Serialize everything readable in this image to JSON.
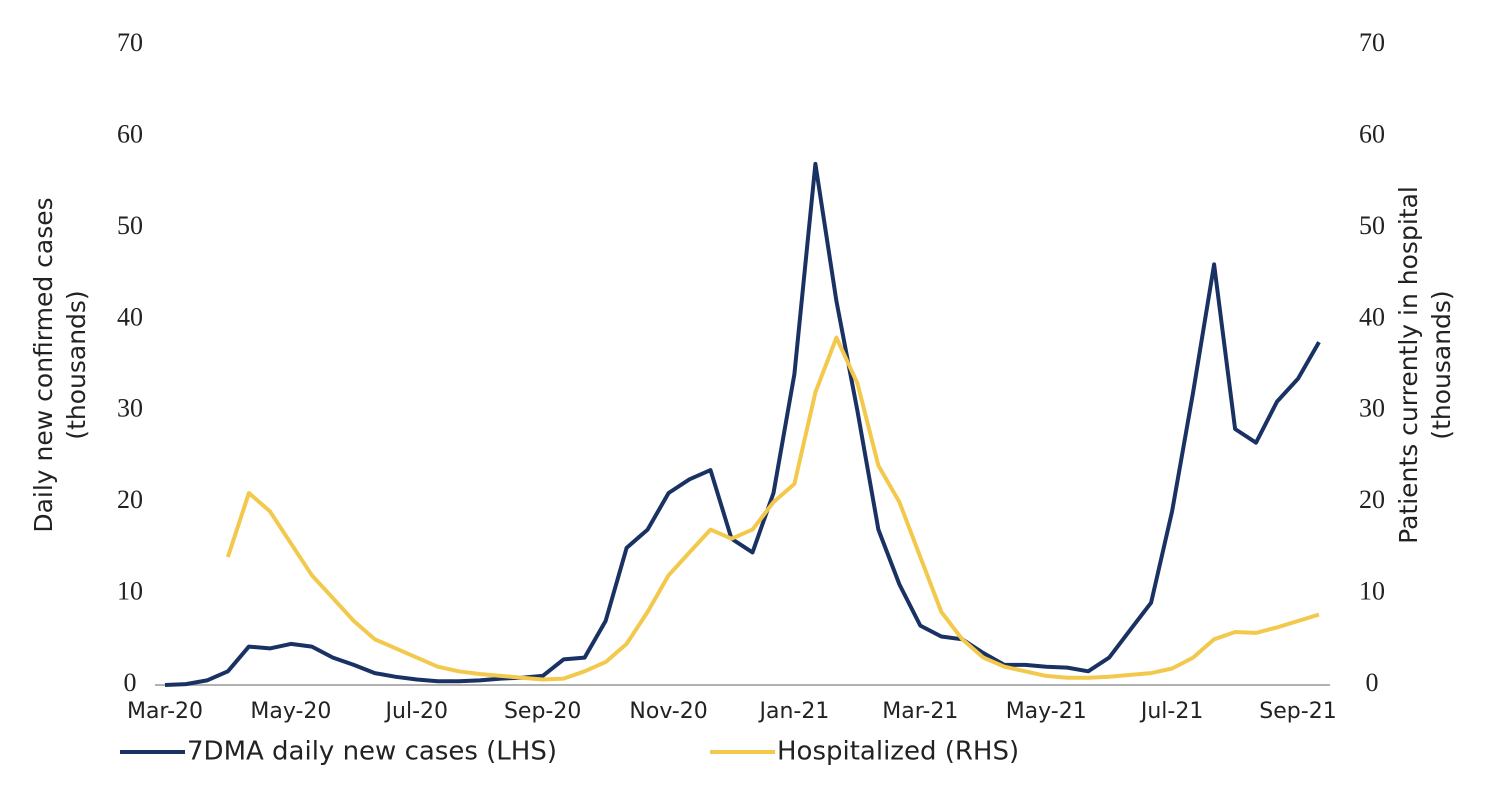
{
  "chart_data": {
    "type": "line",
    "ylabel": [
      "Daily new confirmed cases",
      "(thousands)"
    ],
    "y2label": [
      "Patients currently in hospital",
      "(thousands)"
    ],
    "categories": [
      "Mar-20",
      null,
      null,
      null,
      null,
      null,
      "May-20",
      null,
      null,
      null,
      null,
      null,
      "Jul-20",
      null,
      null,
      null,
      null,
      null,
      "Sep-20",
      null,
      null,
      null,
      null,
      null,
      "Nov-20",
      null,
      null,
      null,
      null,
      null,
      "Jan-21",
      null,
      null,
      null,
      null,
      null,
      "Mar-21",
      null,
      null,
      null,
      null,
      null,
      "May-21",
      null,
      null,
      null,
      null,
      null,
      "Jul-21",
      null,
      null,
      null,
      null,
      null,
      "Sep-21",
      null
    ],
    "series": [
      {
        "name": "7DMA daily new cases (LHS)",
        "color": "#1a3263",
        "axis": "y",
        "values": [
          0,
          0.1,
          0.5,
          1.5,
          4.2,
          4.0,
          4.5,
          4.2,
          3,
          2.2,
          1.3,
          0.9,
          0.6,
          0.4,
          0.4,
          0.5,
          0.7,
          0.8,
          1.0,
          2.8,
          3.0,
          7,
          15,
          17,
          21,
          22.5,
          23.5,
          16,
          14.5,
          21,
          34,
          57,
          42,
          30,
          17,
          11,
          6.5,
          5.3,
          5.0,
          3.5,
          2.2,
          2.2,
          2.0,
          1.9,
          1.5,
          3,
          6,
          9,
          19,
          32,
          46,
          28,
          26.5,
          31,
          33.5,
          37.5
        ]
      },
      {
        "name": "Hospitalized (RHS)",
        "color": "#f2c94c",
        "axis": "y2",
        "values": [
          null,
          null,
          null,
          14,
          21,
          19,
          15.5,
          12,
          9.5,
          7,
          5,
          4,
          3,
          2,
          1.5,
          1.2,
          1.0,
          0.8,
          0.6,
          0.7,
          1.5,
          2.5,
          4.5,
          8,
          12,
          14.5,
          17,
          16,
          17,
          20,
          22,
          32,
          38,
          33,
          24,
          20,
          14,
          8,
          5,
          3,
          2,
          1.5,
          1.0,
          0.8,
          0.8,
          0.9,
          1.1,
          1.3,
          1.8,
          3,
          5,
          5.8,
          5.7,
          6.3,
          7,
          7.7
        ]
      }
    ],
    "ylim": [
      0,
      70
    ],
    "yticks": [
      0,
      10,
      20,
      30,
      40,
      50,
      60,
      70
    ],
    "y2lim": [
      0,
      70
    ],
    "y2ticks": [
      0,
      10,
      20,
      30,
      40,
      50,
      60,
      70
    ],
    "grid": false
  }
}
